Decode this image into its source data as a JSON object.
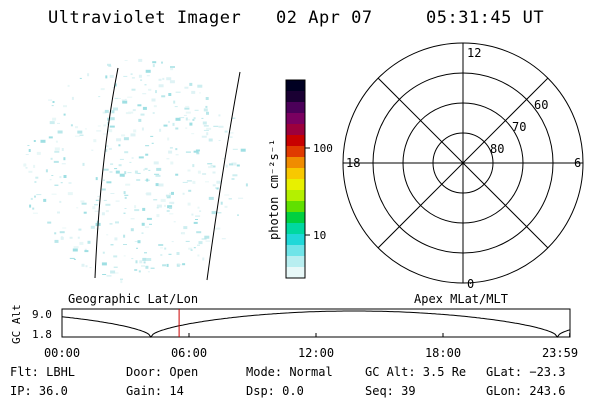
{
  "header": {
    "title": "Ultraviolet Imager",
    "date": "02 Apr 07",
    "time": "05:31:45 UT"
  },
  "colorbar": {
    "label": "photon cm⁻²s⁻¹",
    "ticks": [
      "100",
      "10"
    ],
    "colors": [
      "#000022",
      "#1a0033",
      "#4b0059",
      "#7a0060",
      "#9c003c",
      "#c80000",
      "#e03a00",
      "#f08c00",
      "#f8c800",
      "#e8f000",
      "#b4f000",
      "#60e000",
      "#00d040",
      "#00d8a0",
      "#20d8d8",
      "#70e4e8",
      "#b8eef0",
      "#e8f8f8"
    ]
  },
  "polar": {
    "mlt_labels": {
      "top": "12",
      "bottom": "0",
      "left": "18",
      "right": "6"
    },
    "lat_labels": [
      "60",
      "70",
      "80"
    ]
  },
  "timeline": {
    "left_label": "Geographic Lat/Lon",
    "right_label": "Apex MLat/MLT",
    "axis_title": "GC Alt",
    "y_ticks": [
      "9.0",
      "1.8"
    ],
    "x_ticks": [
      "00:00",
      "06:00",
      "12:00",
      "18:00",
      "23:59"
    ],
    "marker_time_hours": 5.53
  },
  "info": {
    "flt": "Flt: LBHL",
    "door": "Door: Open",
    "mode": "Mode: Normal",
    "gc_alt": "GC Alt: 3.5 Re",
    "glat": "GLat: −23.3",
    "ip": "IP: 36.0",
    "gain": "Gain: 14",
    "dsp": "Dsp:    0.0",
    "seq": "Seq: 39",
    "glon": "GLon: 243.6"
  }
}
